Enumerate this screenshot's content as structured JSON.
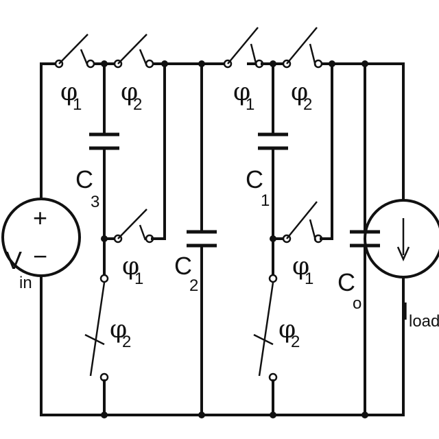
{
  "diagram": {
    "labels": {
      "phi1_a": {
        "sym": "φ",
        "sub": "1"
      },
      "phi2_a": {
        "sym": "φ",
        "sub": "2"
      },
      "phi1_b": {
        "sym": "φ",
        "sub": "1"
      },
      "phi2_b": {
        "sym": "φ",
        "sub": "2"
      },
      "phi1_c": {
        "sym": "φ",
        "sub": "1"
      },
      "phi2_c": {
        "sym": "φ",
        "sub": "2"
      },
      "phi1_d": {
        "sym": "φ",
        "sub": "1"
      },
      "phi2_d": {
        "sym": "φ",
        "sub": "2"
      },
      "c3": {
        "main": "C",
        "sub": "3"
      },
      "c2": {
        "main": "C",
        "sub": "2"
      },
      "c1": {
        "main": "C",
        "sub": "1"
      },
      "co": {
        "main": "C",
        "sub": "o"
      },
      "vin": {
        "main": "V",
        "sub": "in"
      },
      "iload": {
        "main": "I",
        "sub": "load"
      },
      "plus": "+",
      "minus": "−"
    }
  }
}
